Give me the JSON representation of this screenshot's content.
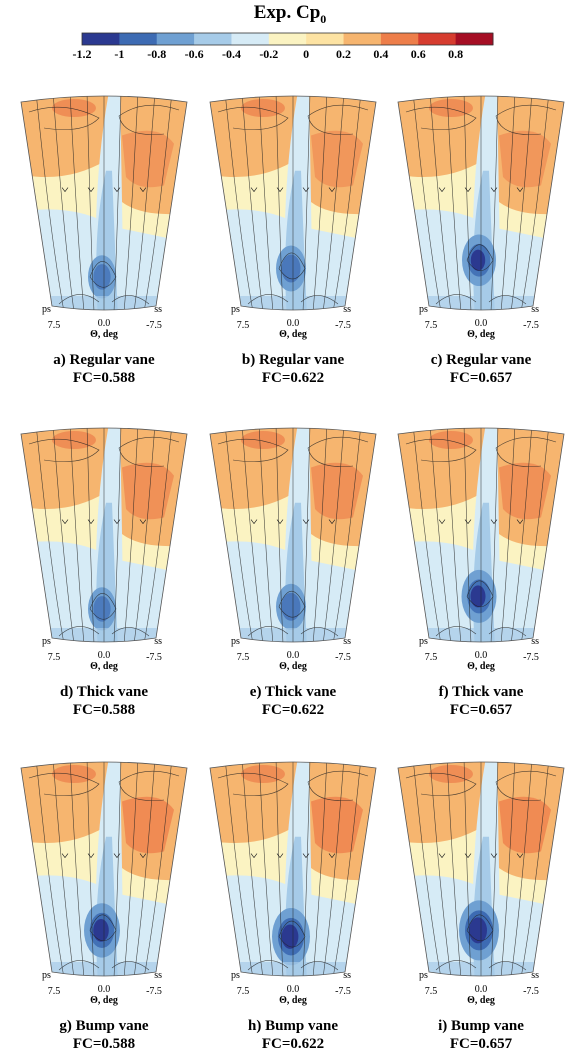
{
  "figure": {
    "title_main": "Exp. Cp",
    "title_sub": "0"
  },
  "colorbar": {
    "ticks": [
      "-1.2",
      "-1",
      "-0.8",
      "-0.6",
      "-0.4",
      "-0.2",
      "0",
      "0.2",
      "0.4",
      "0.6",
      "0.8"
    ],
    "colors": [
      "#2b3990",
      "#3d6bb3",
      "#6fa0d2",
      "#a6cbe8",
      "#d6ebf6",
      "#fbf3c2",
      "#fde3a3",
      "#f6b56f",
      "#ed7e4a",
      "#d63c2f",
      "#a50e24"
    ]
  },
  "axes": {
    "left_label": "ps",
    "right_label": "ss",
    "tick_left": "7.5",
    "tick_mid": "0.0",
    "tick_right": "-7.5",
    "xlabel": "Θ, deg"
  },
  "panels": [
    {
      "caption": "a) Regular vane",
      "fc": "FC=0.588",
      "core_y": 0.86,
      "core": 0.4
    },
    {
      "caption": "b) Regular vane",
      "fc": "FC=0.622",
      "core_y": 0.82,
      "core": 0.5
    },
    {
      "caption": "c) Regular vane",
      "fc": "FC=0.657",
      "core_y": 0.78,
      "core": 0.7
    },
    {
      "caption": "d) Thick vane",
      "fc": "FC=0.588",
      "core_y": 0.86,
      "core": 0.4
    },
    {
      "caption": "e) Thick vane",
      "fc": "FC=0.622",
      "core_y": 0.85,
      "core": 0.5
    },
    {
      "caption": "f) Thick vane",
      "fc": "FC=0.657",
      "core_y": 0.8,
      "core": 0.75
    },
    {
      "caption": "g) Bump vane",
      "fc": "FC=0.588",
      "core_y": 0.8,
      "core": 0.8
    },
    {
      "caption": "h) Bump vane",
      "fc": "FC=0.622",
      "core_y": 0.83,
      "core": 0.9
    },
    {
      "caption": "i) Bump vane",
      "fc": "FC=0.657",
      "core_y": 0.8,
      "core": 1.0
    }
  ]
}
